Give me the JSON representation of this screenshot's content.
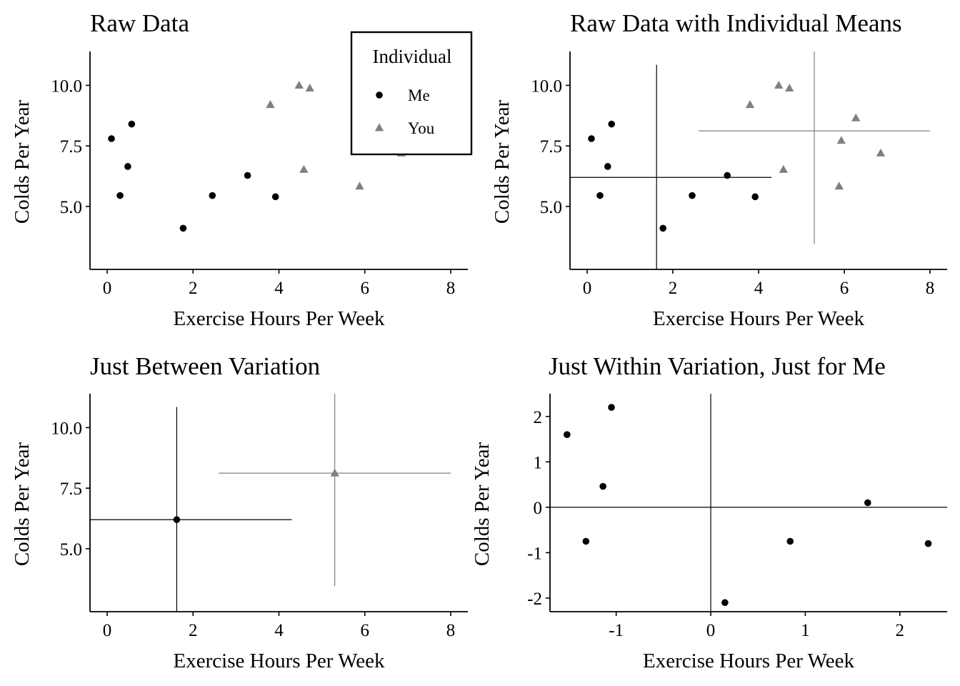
{
  "colors": {
    "me": "#000000",
    "you": "#808080"
  },
  "legend": {
    "title": "Individual",
    "entries": [
      {
        "label": "Me",
        "shape": "circle",
        "color": "#000000"
      },
      {
        "label": "You",
        "shape": "triangle",
        "color": "#808080"
      }
    ]
  },
  "chart_data": [
    {
      "type": "scatter",
      "title": "Raw Data",
      "xlabel": "Exercise Hours Per Week",
      "ylabel": "Colds Per Year",
      "xlim": [
        -0.4,
        8.4
      ],
      "ylim": [
        2.4,
        11.4
      ],
      "xticks": [
        0,
        2,
        4,
        6,
        8
      ],
      "xtick_labels": [
        "0",
        "2",
        "4",
        "6",
        "8"
      ],
      "yticks": [
        5,
        7.5,
        10
      ],
      "ytick_labels": [
        "5.0",
        "7.5",
        "10.0"
      ],
      "grid": false,
      "legend_placement": "top-right",
      "series": [
        {
          "name": "Me",
          "shape": "circle",
          "color": "#000000",
          "points": [
            [
              0.1,
              7.8
            ],
            [
              0.3,
              5.45
            ],
            [
              0.48,
              6.65
            ],
            [
              0.57,
              8.4
            ],
            [
              1.77,
              4.1
            ],
            [
              2.45,
              5.45
            ],
            [
              3.27,
              6.28
            ],
            [
              3.92,
              5.4
            ]
          ]
        },
        {
          "name": "You",
          "shape": "triangle",
          "color": "#808080",
          "points": [
            [
              3.8,
              9.2
            ],
            [
              4.47,
              10.0
            ],
            [
              4.72,
              9.88
            ],
            [
              4.58,
              6.52
            ],
            [
              5.88,
              5.83
            ],
            [
              6.85,
              7.2
            ],
            [
              5.93,
              7.72
            ],
            [
              6.27,
              8.65
            ]
          ]
        }
      ],
      "lines": []
    },
    {
      "type": "scatter",
      "title": "Raw Data with Individual Means",
      "xlabel": "Exercise Hours Per Week",
      "ylabel": "Colds Per Year",
      "xlim": [
        -0.4,
        8.4
      ],
      "ylim": [
        2.4,
        11.4
      ],
      "xticks": [
        0,
        2,
        4,
        6,
        8
      ],
      "xtick_labels": [
        "0",
        "2",
        "4",
        "6",
        "8"
      ],
      "yticks": [
        5,
        7.5,
        10
      ],
      "ytick_labels": [
        "5.0",
        "7.5",
        "10.0"
      ],
      "grid": false,
      "series": [
        {
          "name": "Me",
          "shape": "circle",
          "color": "#000000",
          "points": [
            [
              0.1,
              7.8
            ],
            [
              0.3,
              5.45
            ],
            [
              0.48,
              6.65
            ],
            [
              0.57,
              8.4
            ],
            [
              1.77,
              4.1
            ],
            [
              2.45,
              5.45
            ],
            [
              3.27,
              6.28
            ],
            [
              3.92,
              5.4
            ]
          ]
        },
        {
          "name": "You",
          "shape": "triangle",
          "color": "#808080",
          "points": [
            [
              3.8,
              9.2
            ],
            [
              4.47,
              10.0
            ],
            [
              4.72,
              9.88
            ],
            [
              4.58,
              6.52
            ],
            [
              5.88,
              5.83
            ],
            [
              6.85,
              7.2
            ],
            [
              5.93,
              7.72
            ],
            [
              6.27,
              8.65
            ]
          ]
        }
      ],
      "lines": [
        {
          "color": "#000000",
          "x1": 1.62,
          "y1": 2.4,
          "x2": 1.62,
          "y2": 10.85
        },
        {
          "color": "#000000",
          "x1": -0.4,
          "y1": 6.2,
          "x2": 4.3,
          "y2": 6.2
        },
        {
          "color": "#808080",
          "x1": 5.3,
          "y1": 3.45,
          "x2": 5.3,
          "y2": 11.4
        },
        {
          "color": "#808080",
          "x1": 2.6,
          "y1": 8.12,
          "x2": 8.0,
          "y2": 8.12
        }
      ]
    },
    {
      "type": "scatter",
      "title": "Just Between Variation",
      "xlabel": "Exercise Hours Per Week",
      "ylabel": "Colds Per Year",
      "xlim": [
        -0.4,
        8.4
      ],
      "ylim": [
        2.4,
        11.4
      ],
      "xticks": [
        0,
        2,
        4,
        6,
        8
      ],
      "xtick_labels": [
        "0",
        "2",
        "4",
        "6",
        "8"
      ],
      "yticks": [
        5,
        7.5,
        10
      ],
      "ytick_labels": [
        "5.0",
        "7.5",
        "10.0"
      ],
      "grid": false,
      "series": [
        {
          "name": "Me",
          "shape": "circle",
          "color": "#000000",
          "points": [
            [
              1.62,
              6.2
            ]
          ]
        },
        {
          "name": "You",
          "shape": "triangle",
          "color": "#808080",
          "points": [
            [
              5.3,
              8.12
            ]
          ]
        }
      ],
      "lines": [
        {
          "color": "#000000",
          "x1": 1.62,
          "y1": 2.4,
          "x2": 1.62,
          "y2": 10.85
        },
        {
          "color": "#000000",
          "x1": -0.4,
          "y1": 6.2,
          "x2": 4.3,
          "y2": 6.2
        },
        {
          "color": "#808080",
          "x1": 5.3,
          "y1": 3.45,
          "x2": 5.3,
          "y2": 11.4
        },
        {
          "color": "#808080",
          "x1": 2.6,
          "y1": 8.12,
          "x2": 8.0,
          "y2": 8.12
        }
      ]
    },
    {
      "type": "scatter",
      "title": "Just Within Variation, Just for Me",
      "xlabel": "Exercise Hours Per Week",
      "ylabel": "Colds Per Year",
      "xlim": [
        -1.7,
        2.5
      ],
      "ylim": [
        -2.3,
        2.5
      ],
      "xticks": [
        -1,
        0,
        1,
        2
      ],
      "xtick_labels": [
        "-1",
        "0",
        "1",
        "2"
      ],
      "yticks": [
        -2,
        -1,
        0,
        1,
        2
      ],
      "ytick_labels": [
        "-2",
        "-1",
        "0",
        "1",
        "2"
      ],
      "grid": false,
      "series": [
        {
          "name": "Me",
          "shape": "circle",
          "color": "#000000",
          "points": [
            [
              -1.52,
              1.6
            ],
            [
              -1.32,
              -0.75
            ],
            [
              -1.14,
              0.46
            ],
            [
              -1.05,
              2.2
            ],
            [
              0.15,
              -2.1
            ],
            [
              0.84,
              -0.75
            ],
            [
              1.66,
              0.1
            ],
            [
              2.3,
              -0.8
            ]
          ]
        }
      ],
      "lines": [
        {
          "color": "#000000",
          "x1": 0,
          "y1": -2.3,
          "x2": 0,
          "y2": 2.5
        },
        {
          "color": "#000000",
          "x1": -1.7,
          "y1": 0,
          "x2": 2.5,
          "y2": 0
        }
      ]
    }
  ]
}
